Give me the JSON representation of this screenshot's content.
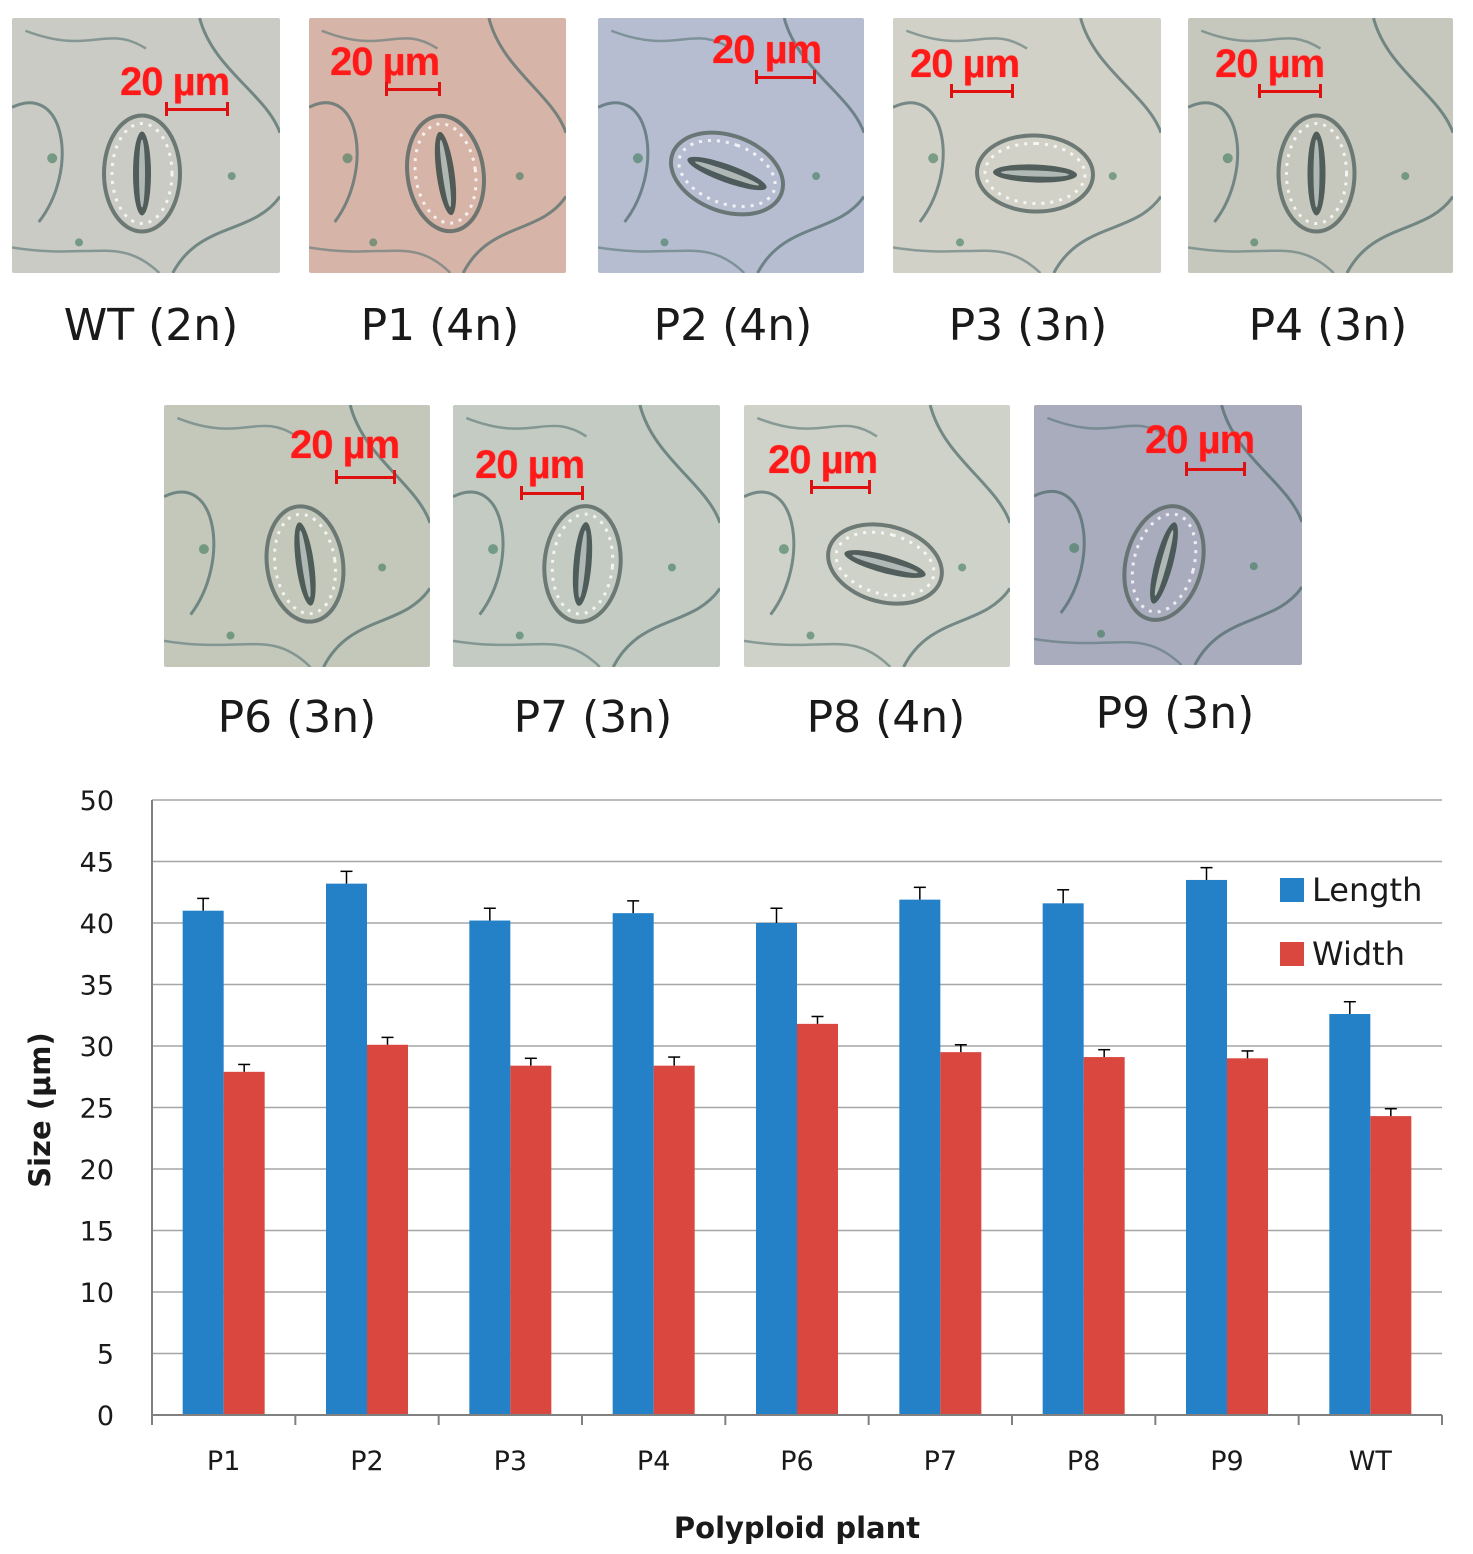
{
  "panels": [
    {
      "caption": "WT (2n)",
      "scale": "20 µm",
      "tint": "#c9cbc4"
    },
    {
      "caption": "P1 (4n)",
      "scale": "20 µm",
      "tint": "#d6b5a8"
    },
    {
      "caption": "P2 (4n)",
      "scale": "20 µm",
      "tint": "#b7bdd0"
    },
    {
      "caption": "P3 (3n)",
      "scale": "20 µm",
      "tint": "#d2d1c8"
    },
    {
      "caption": "P4 (3n)",
      "scale": "20 µm",
      "tint": "#c6c7bd"
    },
    {
      "caption": "P6 (3n)",
      "scale": "20 µm",
      "tint": "#c3c8bb"
    },
    {
      "caption": "P7 (3n)",
      "scale": "20 µm",
      "tint": "#c4cbc3"
    },
    {
      "caption": "P8 (4n)",
      "scale": "20 µm",
      "tint": "#cfd2c8"
    },
    {
      "caption": "P9 (3n)",
      "scale": "20 µm",
      "tint": "#a9acbd"
    }
  ],
  "colors": {
    "length": "#2481c8",
    "width": "#d9473f",
    "grid": "#a6a6a6",
    "scale": "#ff1a1a"
  },
  "chart_data": {
    "type": "bar",
    "title": "",
    "xlabel": "Polyploid plant",
    "ylabel": "Size (µm)",
    "ylim": [
      0,
      50
    ],
    "yticks": [
      0,
      5,
      10,
      15,
      20,
      25,
      30,
      35,
      40,
      45,
      50
    ],
    "categories": [
      "P1",
      "P2",
      "P3",
      "P4",
      "P6",
      "P7",
      "P8",
      "P9",
      "WT"
    ],
    "series": [
      {
        "name": "Length",
        "values": [
          41.0,
          43.2,
          40.2,
          40.8,
          40.0,
          41.9,
          41.6,
          43.5,
          32.6
        ],
        "errors": [
          1.0,
          1.0,
          1.0,
          1.0,
          1.2,
          1.0,
          1.1,
          1.0,
          1.0
        ]
      },
      {
        "name": "Width",
        "values": [
          27.9,
          30.1,
          28.4,
          28.4,
          31.8,
          29.5,
          29.1,
          29.0,
          24.3
        ],
        "errors": [
          0.6,
          0.6,
          0.6,
          0.7,
          0.6,
          0.6,
          0.6,
          0.6,
          0.6
        ]
      }
    ],
    "legend": "right"
  }
}
